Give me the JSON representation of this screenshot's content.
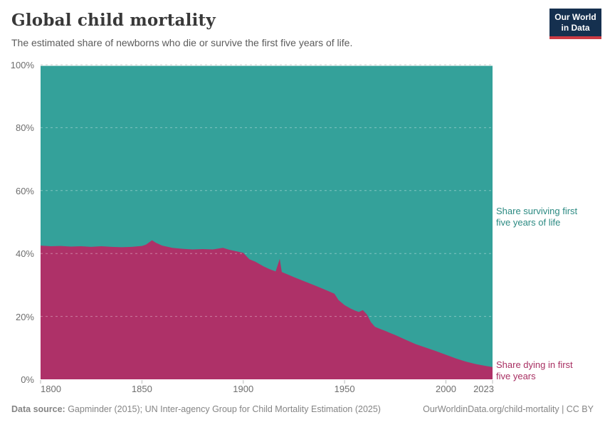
{
  "header": {
    "title": "Global child mortality",
    "subtitle": "The estimated share of newborns who die or survive the first five years of life.",
    "logo": {
      "line1": "Our World",
      "line2": "in Data"
    }
  },
  "colors": {
    "surviving_area": "#34A19A",
    "dying_area": "#AE3168",
    "surviving_label_text": "#2B8A82",
    "dying_label_text": "#A82F62",
    "logo_navy": "#15304F",
    "logo_red": "#CC3B44",
    "axis_text": "#6E6E6E",
    "grid_gray": "#CCCCCC",
    "tick_gray": "#B9B9B9"
  },
  "annotations": {
    "surviving_line1": "Share surviving first",
    "surviving_line2": "five years of life",
    "dying_line1": "Share dying in first",
    "dying_line2": "five years"
  },
  "footer": {
    "source_label": "Data source:",
    "source_text": "Gapminder (2015); UN Inter-agency Group for Child Mortality Estimation (2025)",
    "link_text": "OurWorldinData.org/child-mortality | CC BY"
  },
  "chart_data": {
    "type": "area",
    "stacked": true,
    "title": "Global child mortality",
    "xlabel": "",
    "ylabel": "",
    "unit": "%",
    "x": {
      "range": [
        1800,
        2023
      ],
      "ticks": [
        1800,
        1850,
        1900,
        1950,
        2000,
        2023
      ]
    },
    "y": {
      "range": [
        0,
        100
      ],
      "ticks": [
        {
          "value": 0,
          "label": "0%"
        },
        {
          "value": 20,
          "label": "20%"
        },
        {
          "value": 40,
          "label": "40%"
        },
        {
          "value": 60,
          "label": "60%"
        },
        {
          "value": 80,
          "label": "80%"
        },
        {
          "value": 100,
          "label": "100%"
        }
      ]
    },
    "grid": "dashed horizontal",
    "legend_position": "right-of-plot inline labels",
    "series": [
      {
        "name": "Share dying in first five years",
        "color": "#AE3168",
        "points": [
          [
            1800,
            42.5
          ],
          [
            1805,
            42.3
          ],
          [
            1810,
            42.4
          ],
          [
            1815,
            42.2
          ],
          [
            1820,
            42.3
          ],
          [
            1825,
            42.1
          ],
          [
            1830,
            42.3
          ],
          [
            1835,
            42.1
          ],
          [
            1840,
            42.0
          ],
          [
            1845,
            42.1
          ],
          [
            1850,
            42.4
          ],
          [
            1852,
            42.8
          ],
          [
            1855,
            44.2
          ],
          [
            1857,
            43.4
          ],
          [
            1860,
            42.5
          ],
          [
            1865,
            41.8
          ],
          [
            1870,
            41.5
          ],
          [
            1875,
            41.3
          ],
          [
            1880,
            41.4
          ],
          [
            1885,
            41.3
          ],
          [
            1888,
            41.6
          ],
          [
            1890,
            41.8
          ],
          [
            1893,
            41.2
          ],
          [
            1896,
            40.8
          ],
          [
            1900,
            40.2
          ],
          [
            1903,
            38.2
          ],
          [
            1906,
            37.4
          ],
          [
            1910,
            35.9
          ],
          [
            1913,
            35.0
          ],
          [
            1916,
            34.3
          ],
          [
            1918,
            38.3
          ],
          [
            1919,
            34.1
          ],
          [
            1922,
            33.3
          ],
          [
            1925,
            32.5
          ],
          [
            1930,
            31.2
          ],
          [
            1935,
            29.9
          ],
          [
            1940,
            28.6
          ],
          [
            1945,
            27.2
          ],
          [
            1947,
            25.2
          ],
          [
            1950,
            23.6
          ],
          [
            1953,
            22.5
          ],
          [
            1955,
            21.9
          ],
          [
            1957,
            21.4
          ],
          [
            1959,
            22.0
          ],
          [
            1961,
            20.6
          ],
          [
            1963,
            18.2
          ],
          [
            1965,
            16.7
          ],
          [
            1968,
            15.9
          ],
          [
            1970,
            15.4
          ],
          [
            1973,
            14.6
          ],
          [
            1975,
            14.1
          ],
          [
            1980,
            12.6
          ],
          [
            1985,
            11.2
          ],
          [
            1990,
            10.1
          ],
          [
            1995,
            9.0
          ],
          [
            2000,
            7.8
          ],
          [
            2005,
            6.6
          ],
          [
            2010,
            5.6
          ],
          [
            2015,
            4.8
          ],
          [
            2020,
            4.2
          ],
          [
            2023,
            3.9
          ]
        ]
      },
      {
        "name": "Share surviving first five years of life",
        "color": "#34A19A",
        "derived": "100 minus 'Share dying in first five years' (stacked to 100%)"
      }
    ]
  }
}
